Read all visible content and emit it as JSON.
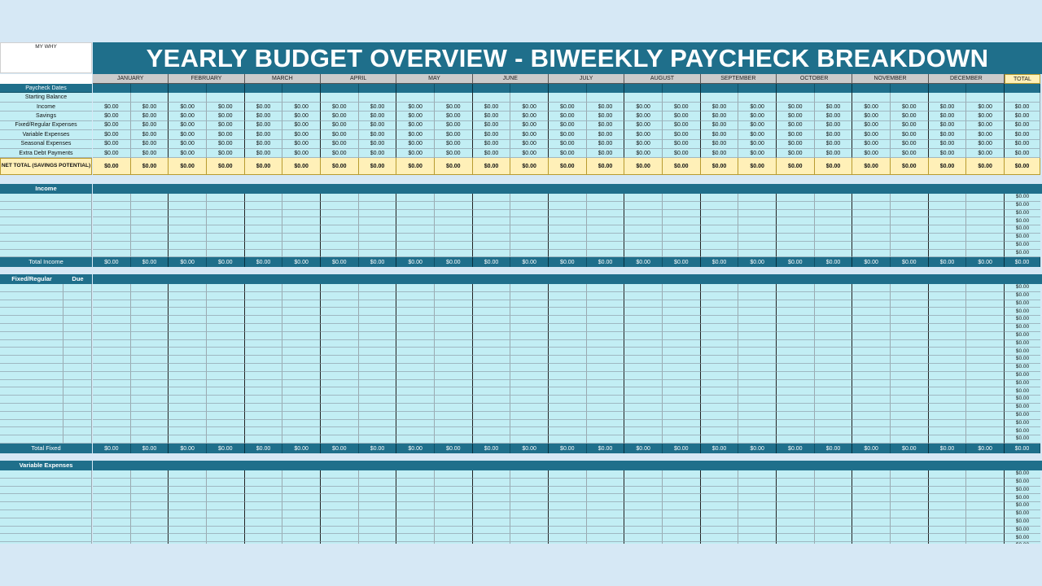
{
  "my_why_label": "MY WHY",
  "title": "YEARLY BUDGET OVERVIEW - BIWEEKLY PAYCHECK BREAKDOWN",
  "months": [
    "JANUARY",
    "FEBRUARY",
    "MARCH",
    "APRIL",
    "MAY",
    "JUNE",
    "JULY",
    "AUGUST",
    "SEPTEMBER",
    "OCTOBER",
    "NOVEMBER",
    "DECEMBER"
  ],
  "total_label": "TOTAL",
  "empty_value": "$0.00",
  "overview": {
    "paycheck_dates_label": "Paycheck Dates",
    "starting_balance_label": "Starting Balance",
    "rows": [
      "Income",
      "Savings",
      "Fixed/Regular Expenses",
      "Variable Expenses",
      "Seasonal Expenses",
      "Extra Debt Payments"
    ],
    "net_total_label": "NET TOTAL (SAVINGS POTENTIAL)"
  },
  "sections": {
    "income": {
      "label": "Income",
      "total_label": "Total Income",
      "rows": 8
    },
    "fixed": {
      "label": "Fixed/Regular",
      "due_label": "Due",
      "total_label": "Total Fixed",
      "rows": 20
    },
    "variable": {
      "label": "Variable Expenses",
      "rows": 10
    }
  },
  "colors": {
    "header_teal": "#1f6f8b",
    "cell_cyan": "#c2eef4",
    "total_yellow": "#fff0b8",
    "month_gray": "#cbcbcb",
    "background": "#d6e8f5"
  }
}
